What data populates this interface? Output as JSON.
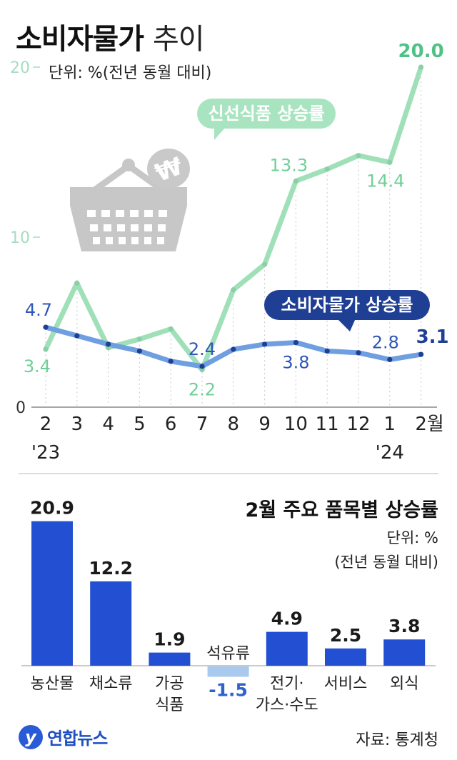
{
  "header": {
    "title": "소비자물가",
    "title_suffix": "추이",
    "unit": "단위: %(전년 동월 대비)"
  },
  "chart_data": [
    {
      "type": "line",
      "title": "소비자물가 추이",
      "unit": "단위: %(전년 동월 대비)",
      "categories": [
        "2",
        "3",
        "4",
        "5",
        "6",
        "7",
        "8",
        "9",
        "10",
        "11",
        "12",
        "1",
        "2월"
      ],
      "year_labels": [
        {
          "index": 0,
          "text": "'23"
        },
        {
          "index": 11,
          "text": "'24"
        }
      ],
      "y_ticks": [
        "0",
        "10",
        "20"
      ],
      "ylim": [
        0,
        20
      ],
      "series": [
        {
          "name": "신선식품 상승률",
          "color": "#9fe0b8",
          "values": [
            3.4,
            7.3,
            3.5,
            4.0,
            4.6,
            2.2,
            6.9,
            8.4,
            13.3,
            14.0,
            14.8,
            14.4,
            20.0
          ],
          "labels": [
            {
              "index": 0,
              "text": "3.4"
            },
            {
              "index": 5,
              "text": "2.2"
            },
            {
              "index": 8,
              "text": "13.3"
            },
            {
              "index": 11,
              "text": "14.4"
            },
            {
              "index": 12,
              "text": "20.0"
            }
          ]
        },
        {
          "name": "소비자물가 상승률",
          "color": "#6f9fe0",
          "values": [
            4.7,
            4.2,
            3.7,
            3.3,
            2.7,
            2.4,
            3.4,
            3.7,
            3.8,
            3.3,
            3.2,
            2.8,
            3.1
          ],
          "labels": [
            {
              "index": 0,
              "text": "4.7"
            },
            {
              "index": 5,
              "text": "2.4"
            },
            {
              "index": 8,
              "text": "3.8"
            },
            {
              "index": 11,
              "text": "2.8"
            },
            {
              "index": 12,
              "text": "3.1"
            }
          ]
        }
      ]
    },
    {
      "type": "bar",
      "title": "2월 주요 품목별 상승률",
      "unit": "단위: %",
      "unit_note": "(전년 동월 대비)",
      "categories": [
        "농산물",
        "채소류",
        "가공식품",
        "석유류",
        "전기·가스·수도",
        "서비스",
        "외식"
      ],
      "category_lines": [
        [
          "농산물"
        ],
        [
          "채소류"
        ],
        [
          "가공",
          "식품"
        ],
        [
          "석유류"
        ],
        [
          "전기·",
          "가스·수도"
        ],
        [
          "서비스"
        ],
        [
          "외식"
        ]
      ],
      "values": [
        20.9,
        12.2,
        1.9,
        -1.5,
        4.9,
        2.5,
        3.8
      ],
      "value_labels": [
        "20.9",
        "12.2",
        "1.9",
        "-1.5",
        "4.9",
        "2.5",
        "3.8"
      ],
      "colors": {
        "positive": "#2350d2",
        "negative": "#a9c9ef"
      }
    }
  ],
  "footer": {
    "logo_mark": "y",
    "logo_text": "연합뉴스",
    "source": "자료: 통계청"
  }
}
